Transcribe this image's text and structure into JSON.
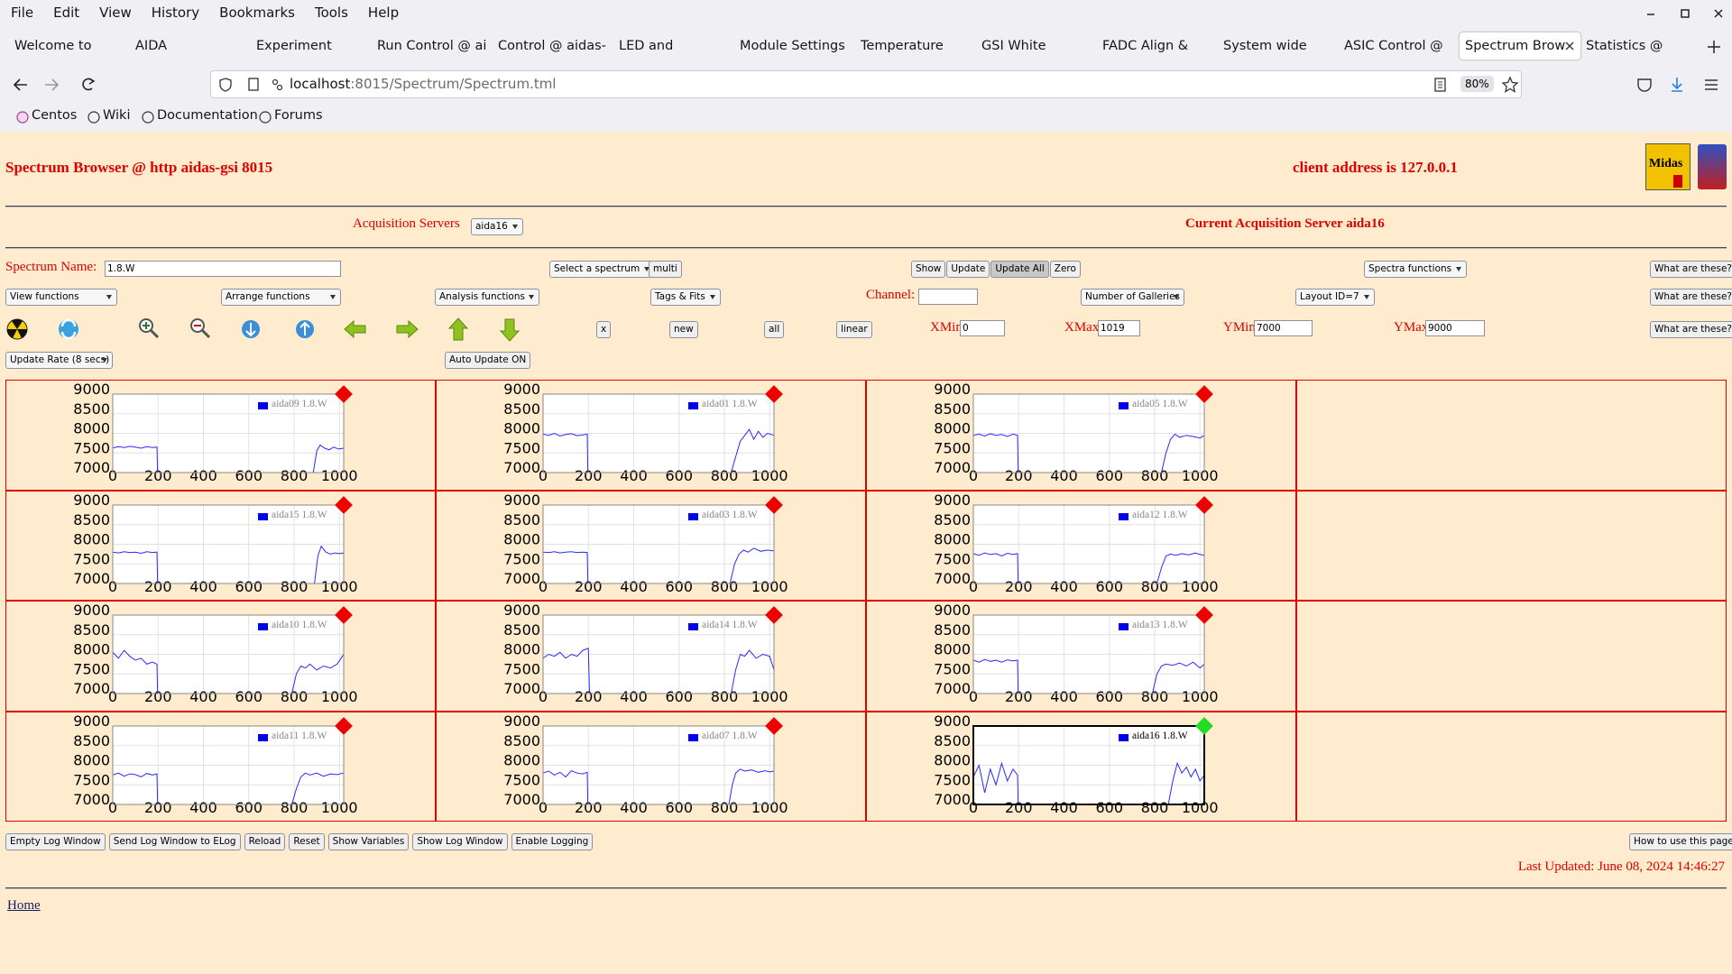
{
  "browser": {
    "menu": [
      "File",
      "Edit",
      "View",
      "History",
      "Bookmarks",
      "Tools",
      "Help"
    ],
    "tabs": [
      "Welcome to Cent",
      "AIDA",
      "Experiment Contr",
      "Run Control @ ai",
      "Control @ aidas-",
      "LED and Wavefor",
      "Module Settings",
      "Temperature and",
      "GSI White Rabbit",
      "FADC Align & Cor",
      "System wide Che",
      "ASIC Control @ a",
      "Spectrum Brow",
      "Statistics @ aidas"
    ],
    "url_host": "localhost",
    "url_path": ":8015/Spectrum/Spectrum.tml",
    "zoom": "80%",
    "bookmarks": [
      "Centos",
      "Wiki",
      "Documentation",
      "Forums"
    ]
  },
  "header": {
    "title": "Spectrum Browser @ http aidas-gsi 8015",
    "client": "client address is 127.0.0.1",
    "logo": "Midas"
  },
  "servers": {
    "label": "Acquisition Servers",
    "selected": "aida16",
    "current": "Current Acquisition Server aida16"
  },
  "controls": {
    "spectrum_name_label": "Spectrum Name:",
    "spectrum_name": "1.8.W",
    "select_spectrum": "Select a spectrum",
    "multi": "multi",
    "actions": [
      "Show",
      "Update",
      "Update All",
      "Zero"
    ],
    "spectra_functions": "Spectra functions",
    "help": "What are these?",
    "view_functions": "View functions",
    "arrange_functions": "Arrange functions",
    "analysis_functions": "Analysis functions",
    "tags_fits": "Tags & Fits",
    "channel_label": "Channel:",
    "galleries": "Number of Galleries",
    "layout": "Layout ID=7",
    "x_button": "x",
    "new": "new",
    "all": "all",
    "scale": "linear",
    "xmin_label": "XMin",
    "xmin": "0",
    "xmax_label": "XMax",
    "xmax": "1019",
    "ymin_label": "YMin",
    "ymin": "7000",
    "ymax_label": "YMax",
    "ymax": "9000",
    "update_rate": "Update Rate (8 secs)",
    "auto_update": "Auto Update ON"
  },
  "gallery": {
    "xlim": [
      0,
      1019
    ],
    "ylim": [
      7000,
      9000
    ],
    "xticks": [
      0,
      200,
      400,
      600,
      800,
      1000
    ],
    "yticks": [
      7000,
      7500,
      8000,
      8500,
      9000
    ],
    "grid": true,
    "line_color": "#2a2aff",
    "legend_color": "#0000ee",
    "panels": [
      {
        "legend": "aida09 1.8.W",
        "marker_color": "#ee0000",
        "selected": false,
        "x": [
          0,
          25,
          50,
          75,
          100,
          125,
          150,
          175,
          195,
          198,
          540,
          885,
          900,
          915,
          935,
          955,
          975,
          995,
          1019
        ],
        "values": [
          7630,
          7660,
          7640,
          7670,
          7650,
          7620,
          7660,
          7640,
          7650,
          7000,
          null,
          7000,
          7550,
          7700,
          7620,
          7580,
          7650,
          7600,
          7620
        ]
      },
      {
        "legend": "aida01 1.8.W",
        "marker_color": "#ee0000",
        "selected": false,
        "x": [
          0,
          25,
          50,
          75,
          100,
          125,
          150,
          175,
          195,
          198,
          540,
          830,
          850,
          870,
          890,
          910,
          930,
          950,
          970,
          990,
          1019
        ],
        "values": [
          7980,
          7950,
          8000,
          7930,
          7970,
          7990,
          7940,
          7960,
          7980,
          7000,
          null,
          7000,
          7400,
          7800,
          7950,
          8100,
          7850,
          8050,
          7900,
          8000,
          7950
        ]
      },
      {
        "legend": "aida05 1.8.W",
        "marker_color": "#ee0000",
        "selected": false,
        "x": [
          0,
          25,
          50,
          75,
          100,
          125,
          150,
          175,
          195,
          198,
          540,
          830,
          850,
          870,
          890,
          910,
          940,
          970,
          1000,
          1019
        ],
        "values": [
          7950,
          7980,
          7930,
          7990,
          7950,
          7970,
          7920,
          7980,
          7950,
          7000,
          null,
          7000,
          7500,
          7850,
          7980,
          7900,
          7950,
          7920,
          7880,
          7950
        ]
      },
      {
        "legend": "aida15 1.8.W",
        "marker_color": "#ee0000",
        "selected": false,
        "x": [
          0,
          25,
          50,
          75,
          100,
          125,
          150,
          175,
          195,
          198,
          540,
          890,
          905,
          920,
          940,
          960,
          980,
          1000,
          1019
        ],
        "values": [
          7800,
          7780,
          7810,
          7790,
          7800,
          7770,
          7810,
          7790,
          7800,
          7000,
          null,
          7000,
          7700,
          7950,
          7800,
          7750,
          7780,
          7760,
          7780
        ]
      },
      {
        "legend": "aida03 1.8.W",
        "marker_color": "#ee0000",
        "selected": false,
        "x": [
          0,
          25,
          50,
          75,
          100,
          125,
          150,
          175,
          195,
          198,
          540,
          825,
          845,
          865,
          885,
          905,
          930,
          960,
          990,
          1019
        ],
        "values": [
          7800,
          7790,
          7810,
          7780,
          7800,
          7810,
          7790,
          7800,
          7790,
          7000,
          null,
          7000,
          7500,
          7750,
          7850,
          7800,
          7900,
          7820,
          7850,
          7830
        ]
      },
      {
        "legend": "aida12 1.8.W",
        "marker_color": "#ee0000",
        "selected": false,
        "x": [
          0,
          25,
          50,
          75,
          100,
          125,
          150,
          175,
          195,
          198,
          540,
          810,
          830,
          850,
          870,
          895,
          920,
          950,
          980,
          1000,
          1019
        ],
        "values": [
          7760,
          7720,
          7780,
          7740,
          7760,
          7700,
          7770,
          7740,
          7760,
          7000,
          null,
          7000,
          7400,
          7700,
          7750,
          7720,
          7760,
          7730,
          7780,
          7740,
          7720
        ]
      },
      {
        "legend": "aida10 1.8.W",
        "marker_color": "#ee0000",
        "selected": false,
        "x": [
          0,
          25,
          50,
          75,
          100,
          125,
          150,
          175,
          195,
          198,
          540,
          790,
          810,
          830,
          850,
          870,
          900,
          930,
          960,
          990,
          1019
        ],
        "values": [
          8050,
          7900,
          8100,
          7950,
          7850,
          7900,
          7750,
          7800,
          7750,
          7000,
          null,
          7000,
          7500,
          7700,
          7650,
          7750,
          7600,
          7700,
          7650,
          7750,
          8000
        ]
      },
      {
        "legend": "aida14 1.8.W",
        "marker_color": "#ee0000",
        "selected": false,
        "x": [
          0,
          25,
          50,
          75,
          100,
          125,
          150,
          175,
          200,
          205,
          540,
          830,
          850,
          870,
          890,
          910,
          940,
          970,
          1000,
          1019
        ],
        "values": [
          7900,
          8000,
          7950,
          8050,
          7900,
          8000,
          7950,
          8100,
          8150,
          7000,
          null,
          7000,
          7600,
          8000,
          7950,
          8100,
          7900,
          8000,
          7950,
          7600
        ]
      },
      {
        "legend": "aida13 1.8.W",
        "marker_color": "#ee0000",
        "selected": false,
        "x": [
          0,
          25,
          50,
          75,
          100,
          125,
          150,
          175,
          195,
          198,
          540,
          790,
          810,
          830,
          850,
          880,
          910,
          940,
          970,
          1000,
          1019
        ],
        "values": [
          7850,
          7800,
          7870,
          7820,
          7850,
          7800,
          7860,
          7830,
          7850,
          7000,
          null,
          7000,
          7500,
          7700,
          7750,
          7720,
          7780,
          7700,
          7800,
          7650,
          7750
        ]
      },
      {
        "legend": "aida11 1.8.W",
        "marker_color": "#ee0000",
        "selected": false,
        "x": [
          0,
          25,
          50,
          75,
          100,
          125,
          150,
          175,
          195,
          198,
          540,
          790,
          810,
          830,
          850,
          870,
          900,
          930,
          960,
          990,
          1019
        ],
        "values": [
          7750,
          7800,
          7720,
          7780,
          7760,
          7700,
          7790,
          7750,
          7780,
          7000,
          null,
          7000,
          7400,
          7700,
          7800,
          7750,
          7800,
          7720,
          7780,
          7760,
          7800
        ]
      },
      {
        "legend": "aida07 1.8.W",
        "marker_color": "#ee0000",
        "selected": false,
        "x": [
          0,
          25,
          50,
          75,
          100,
          125,
          150,
          175,
          195,
          198,
          540,
          820,
          835,
          850,
          870,
          890,
          920,
          950,
          980,
          1000,
          1019
        ],
        "values": [
          7800,
          7850,
          7750,
          7820,
          7700,
          7860,
          7800,
          7780,
          7820,
          7000,
          null,
          7000,
          7500,
          7800,
          7900,
          7850,
          7880,
          7820,
          7860,
          7830,
          7850
        ]
      },
      {
        "legend": "aida16 1.8.W",
        "marker_color": "#22dd22",
        "selected": true,
        "x": [
          0,
          25,
          50,
          75,
          100,
          125,
          150,
          175,
          195,
          198,
          540,
          860,
          880,
          900,
          920,
          940,
          960,
          980,
          1000,
          1019
        ],
        "values": [
          7700,
          8000,
          7300,
          7900,
          7500,
          8050,
          7600,
          7900,
          7750,
          7000,
          null,
          7000,
          7600,
          8050,
          7800,
          7950,
          7700,
          7900,
          7600,
          7750
        ]
      }
    ]
  },
  "footer": {
    "buttons": [
      "Empty Log Window",
      "Send Log Window to ELog",
      "Reload",
      "Reset",
      "Show Variables",
      "Show Log Window",
      "Enable Logging"
    ],
    "how_to": "How to use this page",
    "last_updated": "Last Updated: June 08, 2024 14:46:27",
    "home": "Home"
  }
}
